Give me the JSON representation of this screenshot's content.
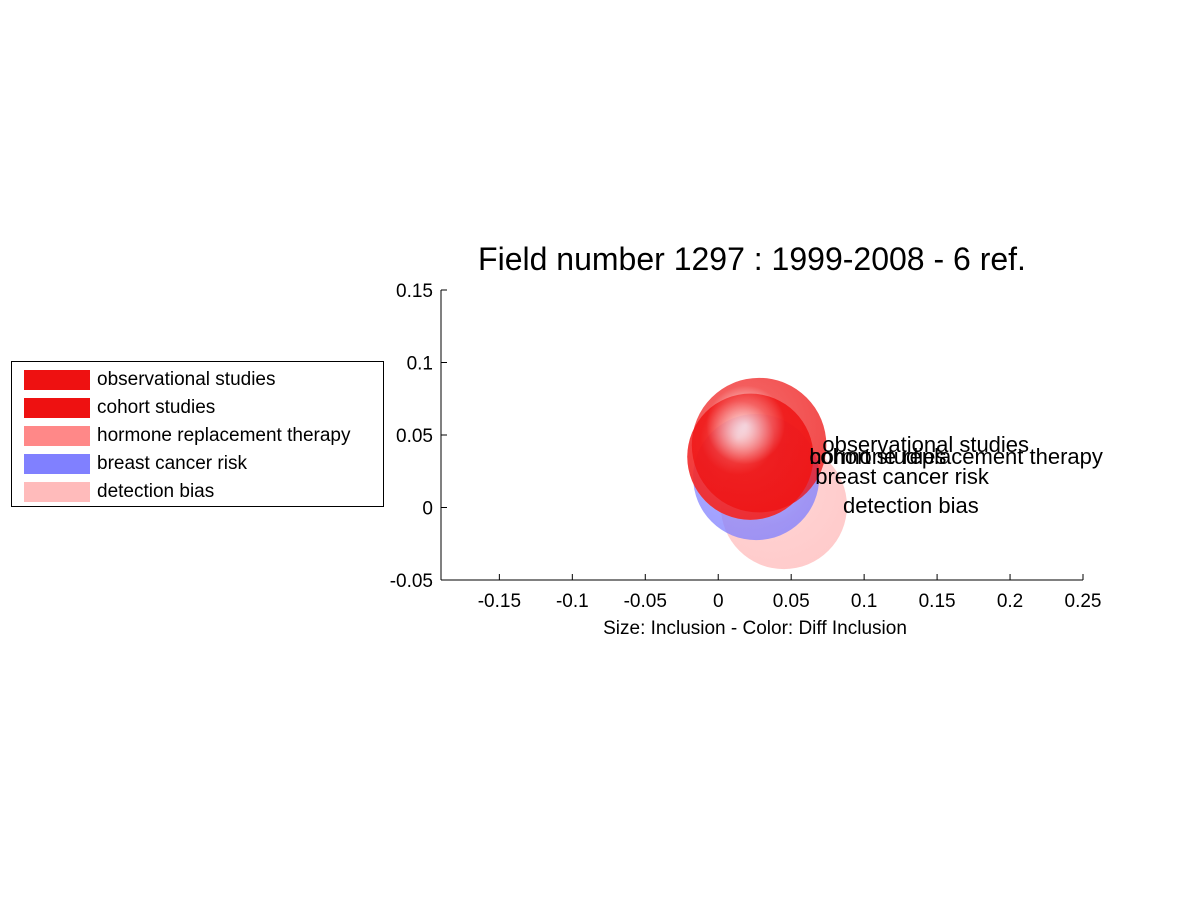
{
  "chart_data": {
    "type": "scatter",
    "title": "Field number 1297 : 1999-2008  - 6 ref.",
    "xlabel": "Size: Inclusion - Color: Diff Inclusion",
    "ylabel": "",
    "xlim": [
      -0.19,
      0.25
    ],
    "ylim": [
      -0.05,
      0.15
    ],
    "xticks": [
      "-0.15",
      "-0.1",
      "-0.05",
      "0",
      "0.05",
      "0.1",
      "0.15",
      "0.2",
      "0.25"
    ],
    "yticks": [
      "-0.05",
      "0",
      "0.05",
      "0.1",
      "0.15"
    ],
    "legend_position": "left",
    "series": [
      {
        "name": "observational studies",
        "x": 0.028,
        "y": 0.043,
        "size": 0.032,
        "color": "#ee1111"
      },
      {
        "name": "cohort studies",
        "x": 0.022,
        "y": 0.035,
        "size": 0.03,
        "color": "#ee1111"
      },
      {
        "name": "hormone replacement therapy",
        "x": 0.022,
        "y": 0.035,
        "size": 0.03,
        "color": "#ff8888"
      },
      {
        "name": "breast cancer risk",
        "x": 0.026,
        "y": 0.021,
        "size": 0.03,
        "color": "#8080ff"
      },
      {
        "name": "detection bias",
        "x": 0.045,
        "y": 0.001,
        "size": 0.03,
        "color": "#ffbbbb"
      }
    ]
  }
}
